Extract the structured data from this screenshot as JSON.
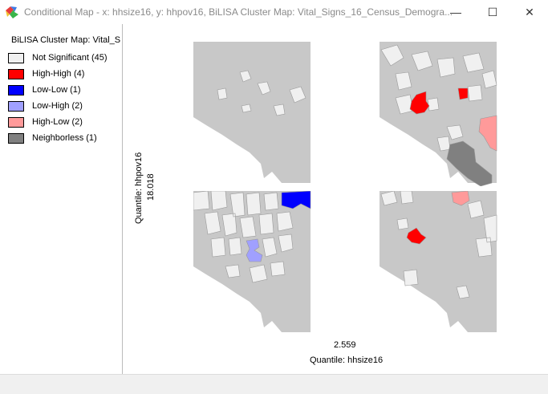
{
  "window": {
    "title": "Conditional Map - x: hhsize16, y: hhpov16,  BiLISA Cluster Map: Vital_Signs_16_Census_Demogra...",
    "minimize_glyph": "—",
    "maximize_glyph": "☐",
    "close_glyph": "✕"
  },
  "legend": {
    "title": "BiLISA Cluster Map: Vital_S",
    "items": [
      {
        "label": "Not Significant (45)",
        "color": "#f0f0f0"
      },
      {
        "label": "High-High (4)",
        "color": "#ff0000"
      },
      {
        "label": "Low-Low (1)",
        "color": "#0000ff"
      },
      {
        "label": "Low-High (2)",
        "color": "#a0a0ff"
      },
      {
        "label": "High-Low (2)",
        "color": "#ff9a9a"
      },
      {
        "label": "Neighborless (1)",
        "color": "#808080"
      }
    ]
  },
  "axes": {
    "x_label": "Quantile: hhsize16",
    "x_break": "2.559",
    "y_label": "Quantile: hhpov16",
    "y_break": "18.018"
  },
  "colors": {
    "base_region": "#c8c8c8",
    "not_significant": "#f0f0f0",
    "high_high": "#ff0000",
    "low_low": "#0000ff",
    "low_high": "#a0a0ff",
    "high_low": "#ff9a9a",
    "neighborless": "#808080"
  }
}
